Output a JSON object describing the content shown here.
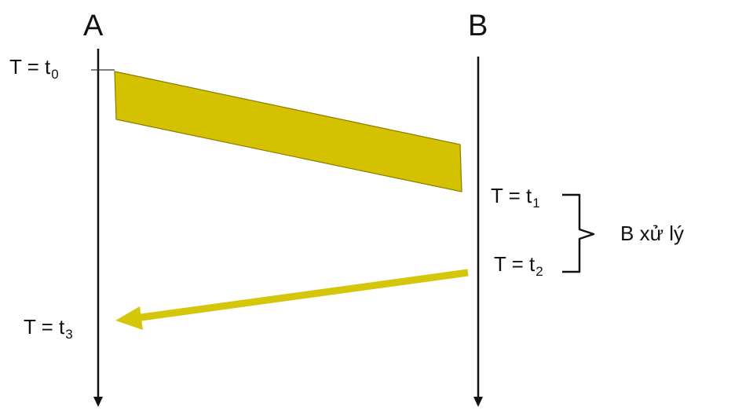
{
  "actors": {
    "a": "A",
    "b": "B"
  },
  "times": {
    "t0": {
      "prefix": "T = t",
      "sub": "0"
    },
    "t1": {
      "prefix": "T = t",
      "sub": "1"
    },
    "t2": {
      "prefix": "T = t",
      "sub": "2"
    },
    "t3": {
      "prefix": "T = t",
      "sub": "3"
    }
  },
  "processing_label": "B xử lý",
  "colors": {
    "lifeline": "#111111",
    "message_fill": "#d4c200",
    "message_stroke": "#8a7d00",
    "reply_arrow": "#d4c60a"
  }
}
